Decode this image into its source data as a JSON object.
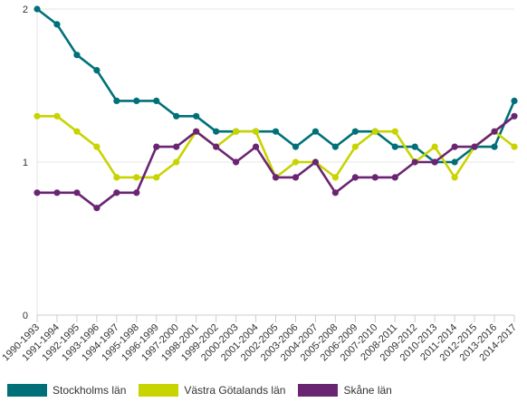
{
  "chart_data": {
    "type": "line",
    "x": [
      "1990-1993",
      "1991-1994",
      "1992-1995",
      "1993-1996",
      "1994-1997",
      "1995-1998",
      "1996-1999",
      "1997-2000",
      "1998-2001",
      "1999-2002",
      "2000-2003",
      "2001-2004",
      "2002-2005",
      "2003-2006",
      "2004-2007",
      "2005-2008",
      "2006-2009",
      "2007-2010",
      "2008-2011",
      "2009-2012",
      "2010-2013",
      "2011-2014",
      "2012-2015",
      "2013-2016",
      "2014-2017"
    ],
    "ylim": [
      0,
      2
    ],
    "yticks": [
      "0",
      "1",
      "2"
    ],
    "grid": true,
    "legend_position": "bottom",
    "series": [
      {
        "name": "Stockholms län",
        "color": "#007078",
        "values": [
          2.0,
          1.9,
          1.7,
          1.6,
          1.4,
          1.4,
          1.4,
          1.3,
          1.3,
          1.2,
          1.2,
          1.2,
          1.2,
          1.1,
          1.2,
          1.1,
          1.2,
          1.2,
          1.1,
          1.1,
          1.0,
          1.0,
          1.1,
          1.1,
          1.4
        ]
      },
      {
        "name": "Västra Götalands län",
        "color": "#c8d400",
        "values": [
          1.3,
          1.3,
          1.2,
          1.1,
          0.9,
          0.9,
          0.9,
          1.0,
          1.2,
          1.1,
          1.2,
          1.2,
          0.9,
          1.0,
          1.0,
          0.9,
          1.1,
          1.2,
          1.2,
          1.0,
          1.1,
          0.9,
          1.1,
          1.2,
          1.1
        ]
      },
      {
        "name": "Skåne län",
        "color": "#6a2572",
        "values": [
          0.8,
          0.8,
          0.8,
          0.7,
          0.8,
          0.8,
          1.1,
          1.1,
          1.2,
          1.1,
          1.0,
          1.1,
          0.9,
          0.9,
          1.0,
          0.8,
          0.9,
          0.9,
          0.9,
          1.0,
          1.0,
          1.1,
          1.1,
          1.2,
          1.3
        ]
      }
    ]
  }
}
